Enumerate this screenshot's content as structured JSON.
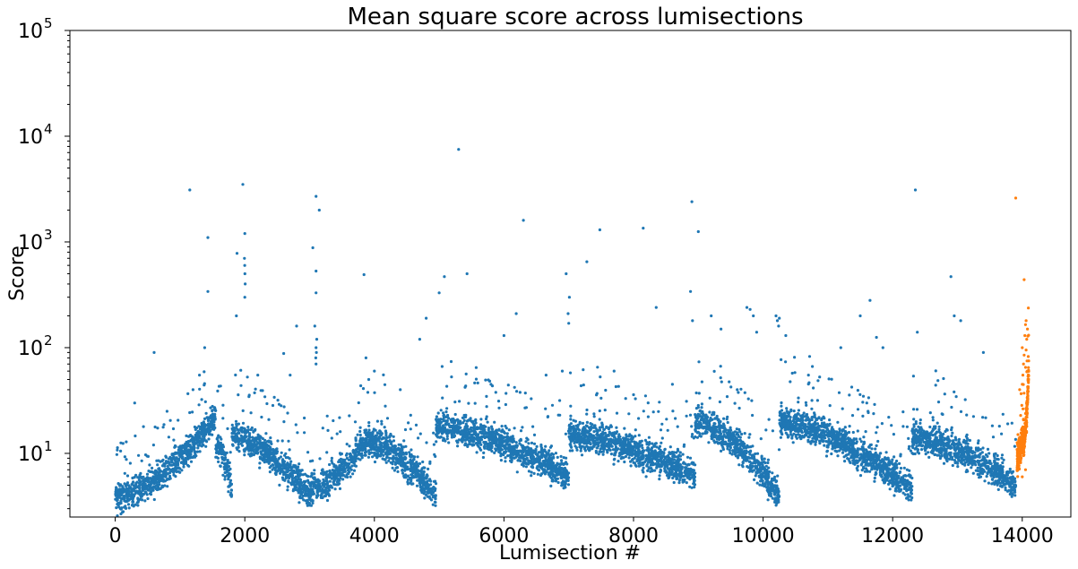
{
  "chart_data": {
    "type": "scatter",
    "title": "Mean square score across lumisections",
    "xlabel": "Lumisection #",
    "ylabel": "Score",
    "xlim": [
      -700,
      14750
    ],
    "ylim": [
      2.5,
      100000
    ],
    "yscale": "log",
    "grid": false,
    "x_ticks": [
      0,
      2000,
      4000,
      6000,
      8000,
      10000,
      12000,
      14000
    ],
    "x_tick_labels": [
      "0",
      "2000",
      "4000",
      "6000",
      "8000",
      "10000",
      "12000",
      "14000"
    ],
    "y_ticks": [
      10,
      100,
      1000,
      10000,
      100000
    ],
    "y_tick_labels": [
      {
        "base": "10",
        "exp": "1"
      },
      {
        "base": "10",
        "exp": "2"
      },
      {
        "base": "10",
        "exp": "3"
      },
      {
        "base": "10",
        "exp": "4"
      },
      {
        "base": "10",
        "exp": "5"
      }
    ],
    "series": [
      {
        "color": "#1f77b4",
        "segments": [
          {
            "x0": 0,
            "x1": 1550,
            "y0": 3.8,
            "y1": 22
          },
          {
            "x0": 1550,
            "x1": 1800,
            "y0": 12,
            "y1": 5
          },
          {
            "x0": 1800,
            "x1": 3000,
            "y0": 15,
            "y1": 4
          },
          {
            "x0": 3000,
            "x1": 3900,
            "y0": 4.5,
            "y1": 14
          },
          {
            "x0": 3900,
            "x1": 4950,
            "y0": 13,
            "y1": 4
          },
          {
            "x0": 4950,
            "x1": 7000,
            "y0": 18,
            "y1": 6
          },
          {
            "x0": 7000,
            "x1": 8950,
            "y0": 15,
            "y1": 6
          },
          {
            "x0": 8950,
            "x1": 10250,
            "y0": 20,
            "y1": 4
          },
          {
            "x0": 10250,
            "x1": 12300,
            "y0": 20,
            "y1": 4.5
          },
          {
            "x0": 12300,
            "x1": 13900,
            "y0": 14,
            "y1": 5
          }
        ],
        "outliers": [
          [
            1150,
            3100
          ],
          [
            1430,
            1100
          ],
          [
            1430,
            340
          ],
          [
            1380,
            100
          ],
          [
            1300,
            55
          ],
          [
            1970,
            3500
          ],
          [
            2000,
            1200
          ],
          [
            1995,
            700
          ],
          [
            1998,
            600
          ],
          [
            2002,
            500
          ],
          [
            2005,
            400
          ],
          [
            2000,
            300
          ],
          [
            1880,
            780
          ],
          [
            1870,
            200
          ],
          [
            2600,
            88
          ],
          [
            2800,
            160
          ],
          [
            2700,
            55
          ],
          [
            3100,
            2700
          ],
          [
            3150,
            2000
          ],
          [
            3050,
            880
          ],
          [
            3100,
            530
          ],
          [
            3100,
            330
          ],
          [
            3080,
            160
          ],
          [
            3110,
            120
          ],
          [
            3100,
            100
          ],
          [
            3105,
            90
          ],
          [
            3095,
            80
          ],
          [
            3100,
            70
          ],
          [
            3840,
            490
          ],
          [
            3870,
            80
          ],
          [
            4000,
            60
          ],
          [
            5000,
            330
          ],
          [
            5080,
            470
          ],
          [
            4800,
            190
          ],
          [
            4700,
            120
          ],
          [
            5300,
            7500
          ],
          [
            5430,
            500
          ],
          [
            6300,
            1600
          ],
          [
            6190,
            210
          ],
          [
            6000,
            130
          ],
          [
            6960,
            500
          ],
          [
            7010,
            300
          ],
          [
            6990,
            210
          ],
          [
            7000,
            170
          ],
          [
            7280,
            650
          ],
          [
            7480,
            1300
          ],
          [
            8150,
            1350
          ],
          [
            8350,
            240
          ],
          [
            8900,
            2400
          ],
          [
            9000,
            1250
          ],
          [
            8880,
            340
          ],
          [
            8910,
            180
          ],
          [
            9200,
            200
          ],
          [
            9350,
            150
          ],
          [
            9750,
            240
          ],
          [
            9800,
            230
          ],
          [
            9850,
            200
          ],
          [
            9900,
            140
          ],
          [
            10200,
            200
          ],
          [
            10220,
            180
          ],
          [
            10240,
            160
          ],
          [
            10250,
            190
          ],
          [
            10350,
            130
          ],
          [
            11500,
            200
          ],
          [
            11650,
            280
          ],
          [
            11750,
            125
          ],
          [
            12350,
            3100
          ],
          [
            12380,
            140
          ],
          [
            12900,
            470
          ],
          [
            12950,
            200
          ],
          [
            13050,
            180
          ],
          [
            13400,
            90
          ],
          [
            11600,
            30
          ],
          [
            11620,
            25
          ],
          [
            600,
            90
          ],
          [
            2200,
            55
          ],
          [
            6900,
            60
          ],
          [
            8600,
            45
          ],
          [
            9600,
            40
          ],
          [
            10700,
            55
          ],
          [
            11200,
            100
          ],
          [
            11850,
            100
          ],
          [
            7700,
            60
          ],
          [
            6650,
            55
          ],
          [
            5800,
            45
          ],
          [
            4400,
            40
          ],
          [
            300,
            30
          ],
          [
            800,
            25
          ],
          [
            1200,
            40
          ]
        ]
      },
      {
        "color": "#ff7f0e",
        "segments": [
          {
            "x0": 13920,
            "x1": 14020,
            "y0": 9,
            "y1": 16
          },
          {
            "x0": 14020,
            "x1": 14100,
            "y0": 12,
            "y1": 60
          }
        ],
        "outliers": [
          [
            13900,
            2600
          ],
          [
            14030,
            440
          ],
          [
            14060,
            180
          ],
          [
            14050,
            165
          ],
          [
            14080,
            150
          ],
          [
            14040,
            130
          ],
          [
            14070,
            120
          ],
          [
            14000,
            100
          ],
          [
            14060,
            95
          ],
          [
            14030,
            85
          ],
          [
            14100,
            75
          ],
          [
            14020,
            70
          ],
          [
            14050,
            65
          ],
          [
            14080,
            60
          ],
          [
            14010,
            55
          ],
          [
            14000,
            45
          ],
          [
            13960,
            40
          ],
          [
            14000,
            6
          ],
          [
            14050,
            7
          ]
        ]
      }
    ]
  }
}
